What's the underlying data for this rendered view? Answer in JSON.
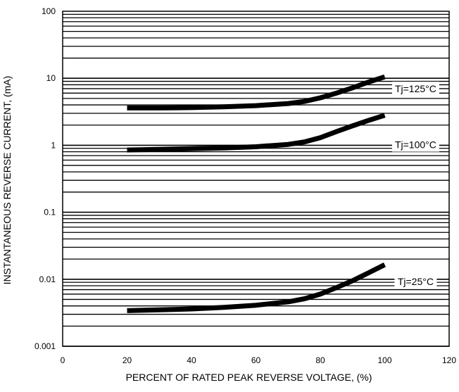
{
  "chart_data": {
    "type": "line",
    "title": "",
    "xlabel": "PERCENT OF RATED PEAK REVERSE VOLTAGE, (%)",
    "ylabel": "INSTANTANEOUS REVERSE CURRENT, (mA)",
    "xlim": [
      0,
      120
    ],
    "ylim": [
      0.001,
      100
    ],
    "yscale": "log",
    "grid": "horizontal log gridlines (1-9 per decade)",
    "x_ticks": [
      "0",
      "20",
      "40",
      "60",
      "80",
      "100",
      "120"
    ],
    "y_ticks": [
      "0.001",
      "0.01",
      "0.1",
      "1",
      "10",
      "100"
    ],
    "colors": {
      "line": "#000000",
      "grid": "#000000",
      "background": "#ffffff"
    },
    "series": [
      {
        "name": "Tj=125°C",
        "x": [
          20,
          30,
          40,
          50,
          60,
          70,
          75,
          80,
          85,
          90,
          95,
          100
        ],
        "y": [
          3.6,
          3.6,
          3.65,
          3.75,
          3.9,
          4.2,
          4.5,
          5.1,
          6.0,
          7.2,
          8.8,
          10.5
        ]
      },
      {
        "name": "Tj=100°C",
        "x": [
          20,
          30,
          40,
          50,
          60,
          70,
          75,
          80,
          85,
          90,
          95,
          100
        ],
        "y": [
          0.85,
          0.87,
          0.89,
          0.91,
          0.95,
          1.03,
          1.12,
          1.3,
          1.6,
          1.95,
          2.35,
          2.8
        ]
      },
      {
        "name": "Tj=25°C",
        "x": [
          20,
          30,
          40,
          50,
          60,
          70,
          75,
          80,
          85,
          90,
          95,
          100
        ],
        "y": [
          0.0034,
          0.0035,
          0.0036,
          0.0038,
          0.0041,
          0.0046,
          0.0051,
          0.006,
          0.0075,
          0.0095,
          0.0125,
          0.0165
        ]
      }
    ]
  }
}
